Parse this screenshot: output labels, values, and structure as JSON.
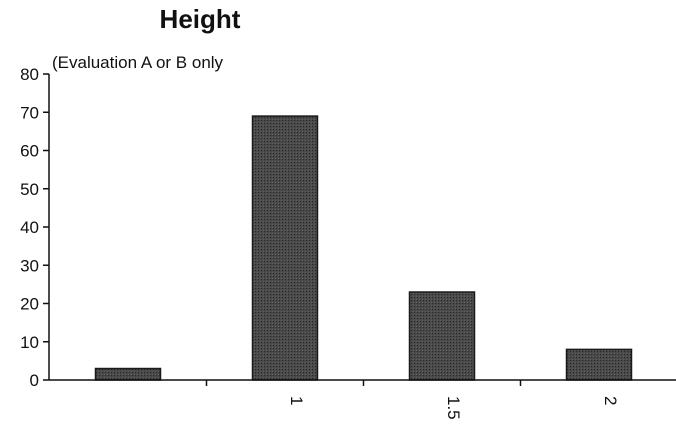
{
  "chart_data": {
    "type": "bar",
    "title": "Height",
    "subtitle": "(Evaluation A or B only",
    "categories": [
      "",
      "1",
      "1.5",
      "2"
    ],
    "values": [
      3,
      69,
      23,
      8
    ],
    "xlabel": "",
    "ylabel": "",
    "ylim": [
      0,
      80
    ],
    "yticks": [
      0,
      10,
      20,
      30,
      40,
      50,
      60,
      70,
      80
    ],
    "grid": false,
    "legend": "none",
    "bar_color": "#3c3c3c",
    "x_tick_rotation": "vertical"
  }
}
